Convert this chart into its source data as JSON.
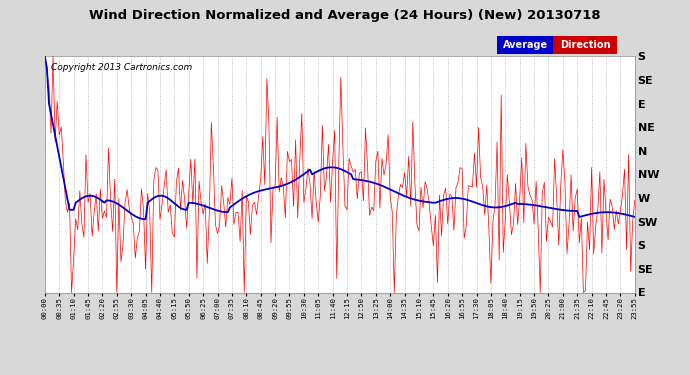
{
  "title": "Wind Direction Normalized and Average (24 Hours) (New) 20130718",
  "copyright": "Copyright 2013 Cartronics.com",
  "background_color": "#d8d8d8",
  "plot_bg_color": "#ffffff",
  "grid_color": "#999999",
  "y_labels": [
    "S",
    "SE",
    "E",
    "NE",
    "N",
    "NW",
    "W",
    "SW",
    "S",
    "SE",
    "E"
  ],
  "y_values": [
    10,
    9,
    8,
    7,
    6,
    5,
    4,
    3,
    2,
    1,
    0
  ],
  "legend_average_color": "#0000cc",
  "legend_direction_color": "#ff0000",
  "legend_box_avg_bg": "#0000cc",
  "legend_box_dir_bg": "#cc0000",
  "num_points": 288,
  "seed": 42,
  "ylim": [
    0,
    10
  ]
}
